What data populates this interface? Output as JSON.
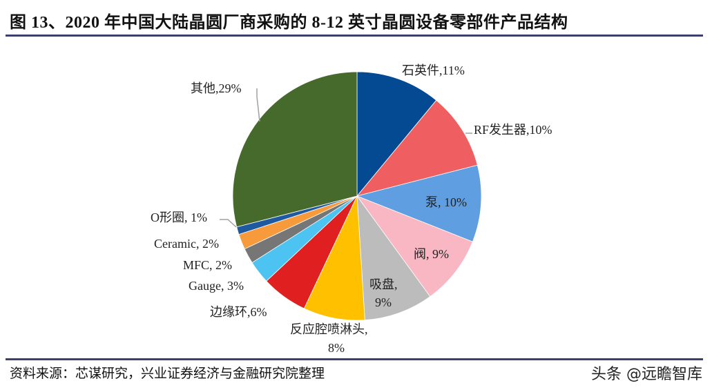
{
  "header": {
    "title": "图 13、2020 年中国大陆晶圆厂商采购的 8-12 英寸晶圆设备零部件产品结构"
  },
  "footer": {
    "source": "资料来源：芯谋研究，兴业证券经济与金融研究院整理",
    "watermark": "头条 @远瞻智库"
  },
  "chart_data": {
    "type": "pie",
    "title": "2020 年中国大陆晶圆厂商采购的 8-12 英寸晶圆设备零部件产品结构",
    "start_angle": "12 o'clock",
    "direction": "clockwise",
    "categories": [
      "石英件",
      "RF发生器",
      "泵",
      "阀",
      "吸盘",
      "反应腔喷淋头",
      "边缘环",
      "Gauge",
      "MFC",
      "Ceramic",
      "O形圈",
      "其他"
    ],
    "values": [
      11,
      10,
      10,
      9,
      9,
      8,
      6,
      3,
      2,
      2,
      1,
      29
    ],
    "unit": "%",
    "colors": [
      "#044a93",
      "#ef5f62",
      "#5f9ee0",
      "#f9b6c3",
      "#bcbcbc",
      "#ffc000",
      "#e02020",
      "#4cc3f0",
      "#767676",
      "#f79a3c",
      "#1f5aa0",
      "#46692c"
    ],
    "labels": [
      "石英件,11%",
      "RF发生器,10%",
      "泵, 10%",
      "阀, 9%",
      "吸盘,",
      "9%",
      "反应腔喷淋头,",
      "8%",
      "边缘环,6%",
      "Gauge, 3%",
      "MFC, 2%",
      "Ceramic, 2%",
      "O形圈, 1%",
      "其他,29%"
    ],
    "legend": "none (data labels on/around slices)"
  }
}
